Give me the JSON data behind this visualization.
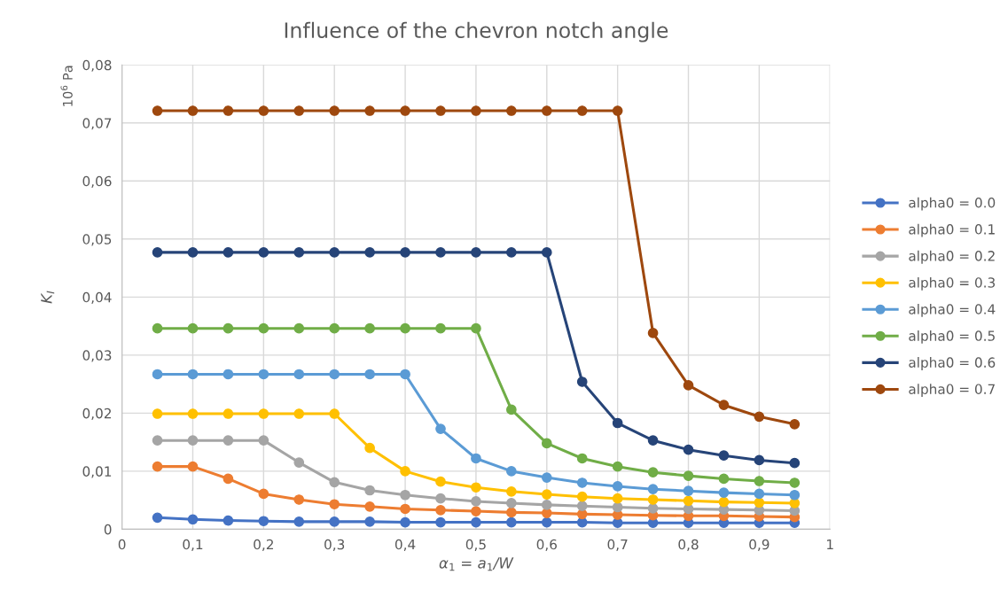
{
  "chart_data": {
    "type": "line",
    "title": "Influence of the chevron notch angle",
    "xlabel": "α$_{1}$ = a$_{1}$/W",
    "ylabel": "K$_{I}$",
    "annotations": [
      "10$^{6}$ Pa"
    ],
    "x": [
      0.05,
      0.1,
      0.15,
      0.2,
      0.25,
      0.3,
      0.35,
      0.4,
      0.45,
      0.5,
      0.55,
      0.6,
      0.65,
      0.7,
      0.75,
      0.8,
      0.85,
      0.9,
      0.95
    ],
    "series": [
      {
        "name": "alpha0 = 0.0",
        "color": "#4472c4",
        "values": [
          0.002,
          0.0017,
          0.0015,
          0.0014,
          0.0013,
          0.0013,
          0.0013,
          0.0012,
          0.0012,
          0.0012,
          0.0012,
          0.0012,
          0.0012,
          0.0011,
          0.0011,
          0.0011,
          0.0011,
          0.0011,
          0.0011
        ]
      },
      {
        "name": "alpha0 = 0.1",
        "color": "#ed7d31",
        "values": [
          0.0108,
          0.0108,
          0.0087,
          0.0061,
          0.0051,
          0.0043,
          0.0039,
          0.0035,
          0.0033,
          0.0031,
          0.0029,
          0.0028,
          0.0026,
          0.0025,
          0.0024,
          0.0023,
          0.0023,
          0.0022,
          0.0021
        ]
      },
      {
        "name": "alpha0 = 0.2",
        "color": "#a5a5a5",
        "values": [
          0.0153,
          0.0153,
          0.0153,
          0.0153,
          0.0115,
          0.0081,
          0.0067,
          0.0059,
          0.0053,
          0.0048,
          0.0045,
          0.0042,
          0.004,
          0.0038,
          0.0036,
          0.0035,
          0.0034,
          0.0033,
          0.0032
        ]
      },
      {
        "name": "alpha0 = 0.3",
        "color": "#ffc000",
        "values": [
          0.0199,
          0.0199,
          0.0199,
          0.0199,
          0.0199,
          0.0199,
          0.014,
          0.01,
          0.0082,
          0.0072,
          0.0065,
          0.006,
          0.0056,
          0.0053,
          0.0051,
          0.0049,
          0.0047,
          0.0046,
          0.0045
        ]
      },
      {
        "name": "alpha0 = 0.4",
        "color": "#5b9bd5",
        "values": [
          0.0267,
          0.0267,
          0.0267,
          0.0267,
          0.0267,
          0.0267,
          0.0267,
          0.0267,
          0.0173,
          0.0122,
          0.01,
          0.0089,
          0.008,
          0.0074,
          0.0069,
          0.0066,
          0.0063,
          0.0061,
          0.0059
        ]
      },
      {
        "name": "alpha0 = 0.5",
        "color": "#70ad47",
        "values": [
          0.0346,
          0.0346,
          0.0346,
          0.0346,
          0.0346,
          0.0346,
          0.0346,
          0.0346,
          0.0346,
          0.0346,
          0.0206,
          0.0148,
          0.0122,
          0.0108,
          0.0098,
          0.0092,
          0.0087,
          0.0083,
          0.008
        ]
      },
      {
        "name": "alpha0 = 0.6",
        "color": "#264478",
        "values": [
          0.0477,
          0.0477,
          0.0477,
          0.0477,
          0.0477,
          0.0477,
          0.0477,
          0.0477,
          0.0477,
          0.0477,
          0.0477,
          0.0477,
          0.0254,
          0.0183,
          0.0153,
          0.0137,
          0.0127,
          0.0119,
          0.0114
        ]
      },
      {
        "name": "alpha0 = 0.7",
        "color": "#9e480e",
        "values": [
          0.0721,
          0.0721,
          0.0721,
          0.0721,
          0.0721,
          0.0721,
          0.0721,
          0.0721,
          0.0721,
          0.0721,
          0.0721,
          0.0721,
          0.0721,
          0.0721,
          0.0338,
          0.0248,
          0.0214,
          0.0194,
          0.0181
        ]
      }
    ],
    "xlim": [
      0,
      1
    ],
    "xticks": [
      0,
      {
        "value": 0.1,
        "label": "0,1"
      },
      {
        "value": 0.2,
        "label": "0,2"
      },
      {
        "value": 0.3,
        "label": "0,3"
      },
      {
        "value": 0.4,
        "label": "0,4"
      },
      {
        "value": 0.5,
        "label": "0,5"
      },
      {
        "value": 0.6,
        "label": "0,6"
      },
      {
        "value": 0.7,
        "label": "0,7"
      },
      {
        "value": 0.8,
        "label": "0,8"
      },
      {
        "value": 0.9,
        "label": "0,9"
      },
      1
    ],
    "ylim": [
      0,
      0.08
    ],
    "yticks": [
      0,
      {
        "value": 0.01,
        "label": "0,01"
      },
      {
        "value": 0.02,
        "label": "0,02"
      },
      {
        "value": 0.03,
        "label": "0,03"
      },
      {
        "value": 0.04,
        "label": "0,04"
      },
      {
        "value": 0.05,
        "label": "0,05"
      },
      {
        "value": 0.06,
        "label": "0,06"
      },
      {
        "value": 0.07,
        "label": "0,07"
      },
      {
        "value": 0.08,
        "label": "0,08"
      }
    ],
    "grid": true,
    "legend": "right",
    "marker": "circle",
    "line_style": "solid"
  }
}
